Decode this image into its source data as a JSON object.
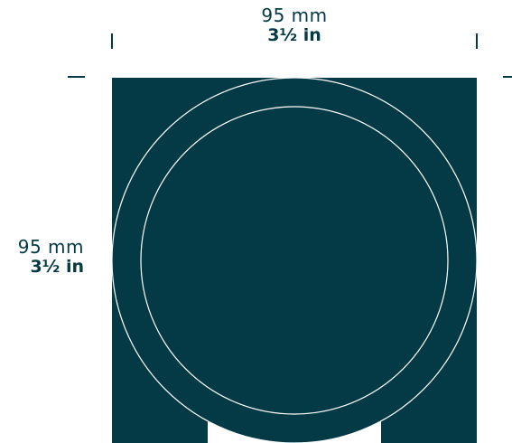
{
  "width_dimension": {
    "metric": "95 mm",
    "imperial": "3½ in"
  },
  "height_dimension": {
    "metric": "95 mm",
    "imperial": "3½ in"
  },
  "colors": {
    "product_fill": "#033a46",
    "outline_stroke": "#ffffff",
    "tick_color": "#033a46",
    "background": "#ffffff"
  }
}
